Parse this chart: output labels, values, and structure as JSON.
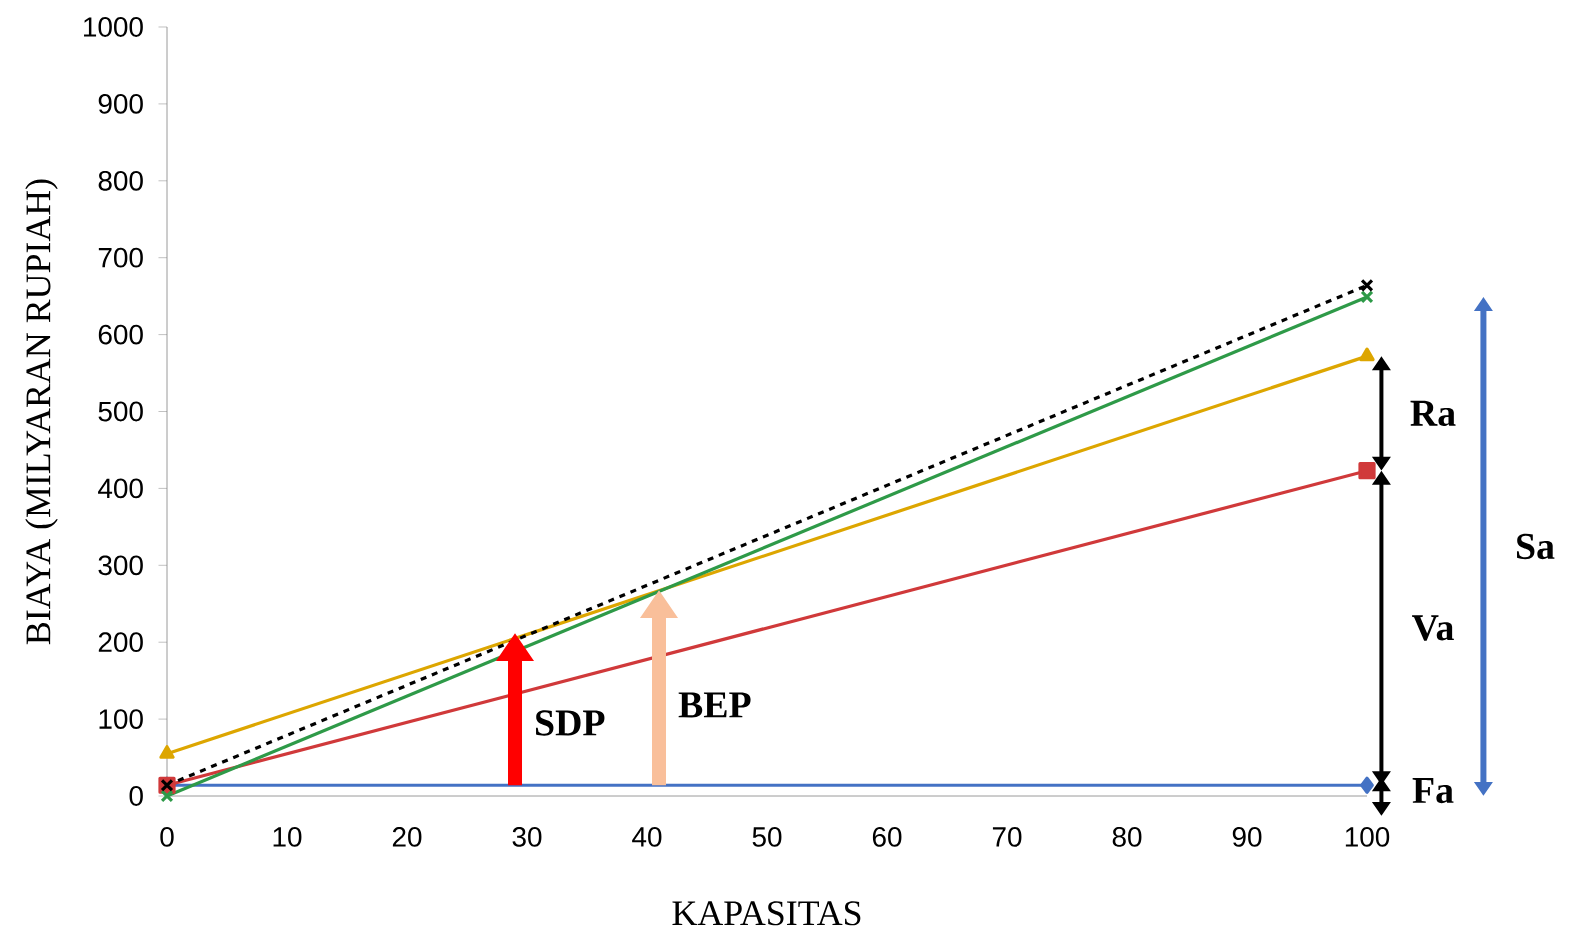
{
  "chart_data": {
    "type": "line",
    "xlabel": "KAPASITAS",
    "ylabel": "BIAYA (MILYARAN RUPIAH)",
    "x": [
      0,
      100
    ],
    "series": [
      {
        "color": "#4472c4",
        "marker": "diamond",
        "values": [
          14,
          14
        ]
      },
      {
        "color": "#d0393a",
        "marker": "square",
        "values": [
          14,
          423
        ]
      },
      {
        "color": "#dda600",
        "marker": "triangle",
        "values": [
          55,
          572
        ]
      },
      {
        "color": "#2e9a48",
        "marker": "cross",
        "values": [
          0,
          649
        ]
      },
      {
        "color": "#000000",
        "marker": "cross",
        "line_style": "dashed",
        "values": [
          14,
          664
        ]
      }
    ],
    "xlim": [
      0,
      100
    ],
    "ylim": [
      0,
      1000
    ],
    "xticks": [
      0,
      10,
      20,
      30,
      40,
      50,
      60,
      70,
      80,
      90,
      100
    ],
    "yticks": [
      0,
      100,
      200,
      300,
      400,
      500,
      600,
      700,
      800,
      900,
      1000
    ],
    "grid": false,
    "annotations": [
      {
        "text": "SDP",
        "x": 29,
        "y": 212
      },
      {
        "text": "BEP",
        "x": 41,
        "y": 268
      },
      "Ra",
      "Va",
      "Fa",
      "Sa"
    ]
  }
}
